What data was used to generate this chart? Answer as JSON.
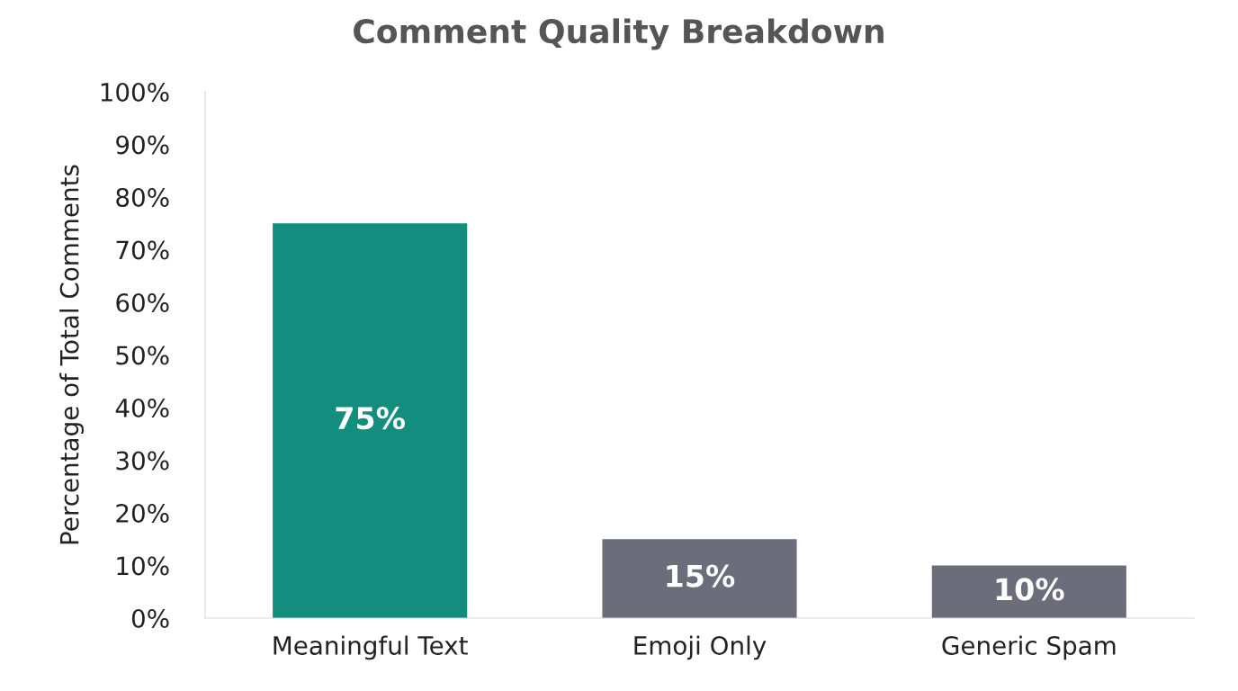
{
  "chart_data": {
    "type": "bar",
    "title": "Comment Quality Breakdown",
    "ylabel": "Percentage of Total Comments",
    "categories": [
      "Meaningful Text",
      "Emoji Only",
      "Generic Spam"
    ],
    "values": [
      75,
      15,
      10
    ],
    "colors": [
      "#138d7d",
      "#6b6e7a",
      "#6b6e7a"
    ],
    "value_labels": [
      "75%",
      "15%",
      "10%"
    ],
    "ylim": [
      0,
      100
    ],
    "yticks": [
      {
        "value": 0,
        "label": "0%"
      },
      {
        "value": 10,
        "label": "10%"
      },
      {
        "value": 20,
        "label": "20%"
      },
      {
        "value": 30,
        "label": "30%"
      },
      {
        "value": 40,
        "label": "40%"
      },
      {
        "value": 50,
        "label": "50%"
      },
      {
        "value": 60,
        "label": "60%"
      },
      {
        "value": 70,
        "label": "70%"
      },
      {
        "value": 80,
        "label": "80%"
      },
      {
        "value": 90,
        "label": "90%"
      },
      {
        "value": 100,
        "label": "100%"
      }
    ],
    "grid": false,
    "legend": false
  }
}
